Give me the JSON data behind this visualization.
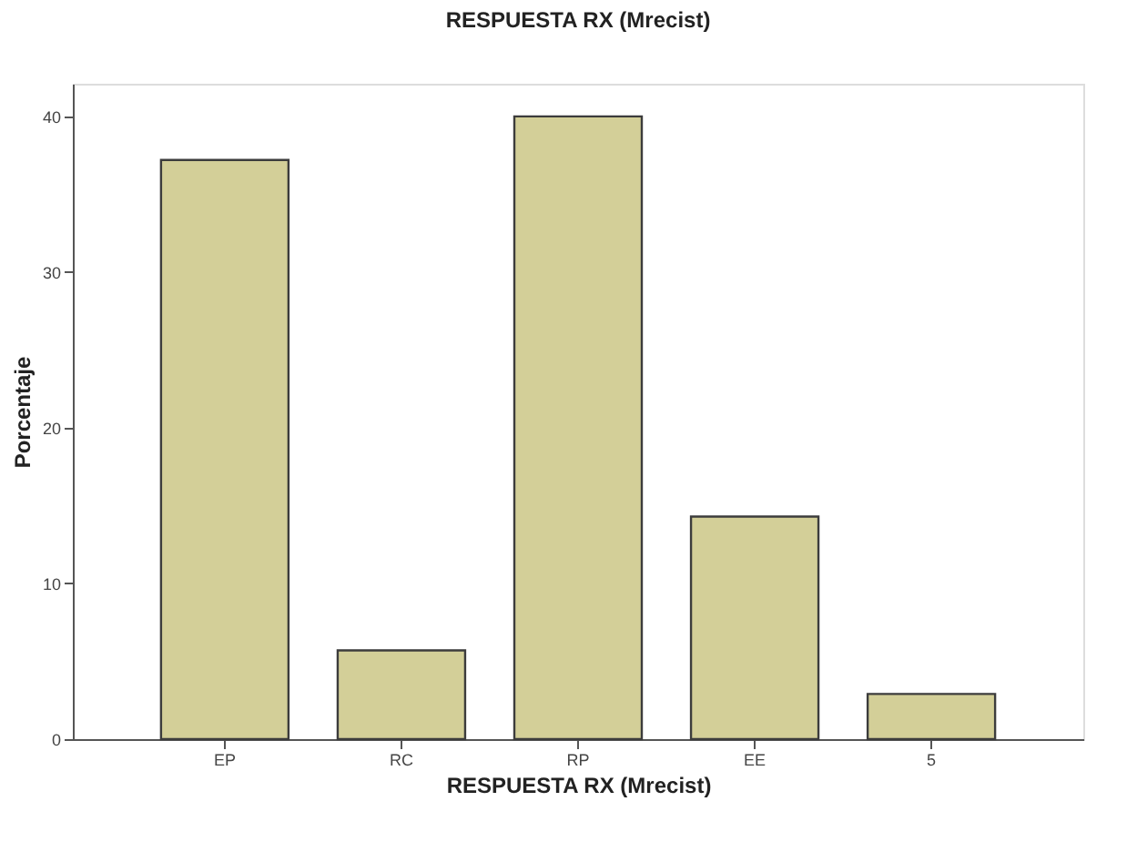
{
  "chart_data": {
    "type": "bar",
    "title": "RESPUESTA RX (Mrecist)",
    "xlabel": "RESPUESTA RX (Mrecist)",
    "ylabel": "Porcentaje",
    "categories": [
      "EP",
      "RC",
      "RP",
      "EE",
      "5"
    ],
    "values": [
      37.2,
      5.7,
      40.0,
      14.3,
      2.9
    ],
    "color": "#d3cf98",
    "ylim": [
      0,
      42.1
    ],
    "yticks": [
      0,
      10,
      20,
      30,
      40
    ],
    "grid": false
  }
}
